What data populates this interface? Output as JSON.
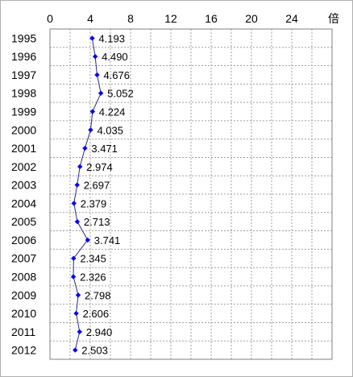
{
  "chart_data": {
    "type": "line",
    "orientation": "horizontal-values",
    "unit_label": "倍",
    "x_ticks": [
      "0",
      "4",
      "8",
      "12",
      "16",
      "20",
      "24"
    ],
    "xlim": [
      0,
      28
    ],
    "categories": [
      "1995",
      "1996",
      "1997",
      "1998",
      "1999",
      "2000",
      "2001",
      "2002",
      "2003",
      "2004",
      "2005",
      "2006",
      "2007",
      "2008",
      "2009",
      "2010",
      "2011",
      "2012"
    ],
    "series": [
      {
        "values": [
          4.193,
          4.49,
          4.676,
          5.052,
          4.224,
          4.035,
          3.471,
          2.974,
          2.697,
          2.379,
          2.713,
          3.741,
          2.345,
          2.326,
          2.798,
          2.606,
          2.94,
          2.503
        ],
        "labels": [
          "4.193",
          "4.490",
          "4.676",
          "5.052",
          "4.224",
          "4.035",
          "3.471",
          "2.974",
          "2.697",
          "2.379",
          "2.713",
          "3.741",
          "2.345",
          "2.326",
          "2.798",
          "2.606",
          "2.940",
          "2.503"
        ],
        "color": "#0000ff"
      }
    ],
    "grid": true,
    "line_color": "#2b2b8c",
    "grid_color": "#a0a0a0"
  }
}
